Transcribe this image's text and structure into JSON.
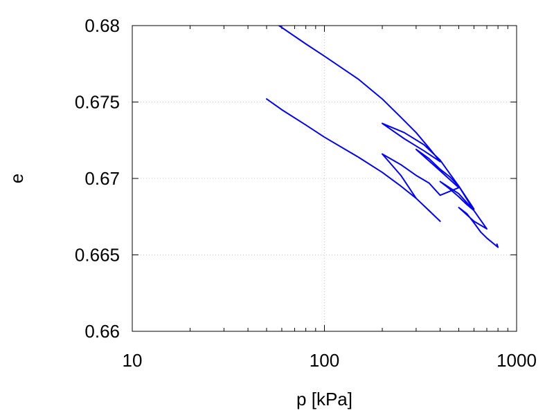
{
  "chart_data": {
    "type": "line",
    "title": "",
    "xlabel": "p [kPa]",
    "ylabel": "e",
    "xscale": "log",
    "xlim": [
      10,
      1000
    ],
    "ylim": [
      0.66,
      0.68
    ],
    "grid": true,
    "grid_style": "dotted",
    "series_color": "#0000ee",
    "x_ticks": [
      10,
      100,
      1000
    ],
    "x_tick_labels": [
      "10",
      "100",
      "1000"
    ],
    "y_ticks": [
      0.66,
      0.665,
      0.67,
      0.675,
      0.68
    ],
    "y_tick_labels": [
      "0.66",
      "0.665",
      "0.67",
      "0.675",
      "0.68"
    ],
    "series": [
      {
        "x": [
          50,
          60,
          80,
          100,
          150,
          200,
          250,
          300,
          350,
          400,
          300,
          250,
          200,
          250,
          300,
          350,
          400,
          500,
          400,
          300,
          350,
          400,
          450,
          500,
          600,
          500,
          400,
          450,
          500,
          550,
          600,
          700,
          600,
          500,
          550,
          600,
          650,
          700,
          800,
          790
        ],
        "y": [
          0.6752,
          0.6745,
          0.6735,
          0.6727,
          0.6714,
          0.6704,
          0.6695,
          0.6687,
          0.6679,
          0.6672,
          0.6687,
          0.6702,
          0.6716,
          0.6709,
          0.6702,
          0.6697,
          0.6689,
          0.6694,
          0.6705,
          0.6719,
          0.6713,
          0.6706,
          0.6701,
          0.6695,
          0.6679,
          0.669,
          0.6698,
          0.6693,
          0.6688,
          0.6683,
          0.6679,
          0.6667,
          0.6672,
          0.6681,
          0.6677,
          0.6671,
          0.6665,
          0.6661,
          0.6655,
          0.6657
        ]
      },
      {
        "x": [
          58,
          80,
          100,
          150,
          200,
          250,
          300,
          350,
          400,
          330,
          260,
          200,
          260,
          330,
          400,
          450,
          500,
          600
        ],
        "y": [
          0.68,
          0.6788,
          0.678,
          0.6765,
          0.6752,
          0.674,
          0.673,
          0.672,
          0.6711,
          0.6718,
          0.6726,
          0.6736,
          0.673,
          0.6722,
          0.6712,
          0.6703,
          0.6695,
          0.668
        ]
      }
    ]
  }
}
